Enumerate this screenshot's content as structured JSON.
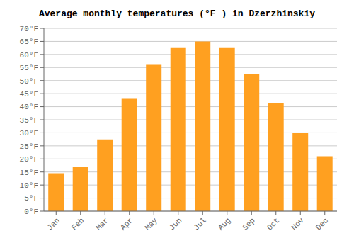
{
  "chart_data": {
    "type": "bar",
    "title": "Average monthly temperatures (°F ) in Dzerzhinskiy",
    "categories": [
      "Jan",
      "Feb",
      "Mar",
      "Apr",
      "May",
      "Jun",
      "Jul",
      "Aug",
      "Sep",
      "Oct",
      "Nov",
      "Dec"
    ],
    "values": [
      14.5,
      17.0,
      27.5,
      43.0,
      56.0,
      62.5,
      65.0,
      62.5,
      52.5,
      41.5,
      30.0,
      21.0
    ],
    "color": "#FFA020",
    "ylim": [
      0,
      70
    ],
    "yticks": [
      {
        "value": 0,
        "label": "0°F"
      },
      {
        "value": 5,
        "label": "5°F"
      },
      {
        "value": 10,
        "label": "10°F"
      },
      {
        "value": 15,
        "label": "15°F"
      },
      {
        "value": 20,
        "label": "20°F"
      },
      {
        "value": 25,
        "label": "25°F"
      },
      {
        "value": 30,
        "label": "30°F"
      },
      {
        "value": 35,
        "label": "35°F"
      },
      {
        "value": 40,
        "label": "40°F"
      },
      {
        "value": 45,
        "label": "45°F"
      },
      {
        "value": 50,
        "label": "50°F"
      },
      {
        "value": 55,
        "label": "55°F"
      },
      {
        "value": 60,
        "label": "60°F"
      },
      {
        "value": 65,
        "label": "65°F"
      },
      {
        "value": 70,
        "label": "70°F"
      }
    ],
    "grid": true
  }
}
